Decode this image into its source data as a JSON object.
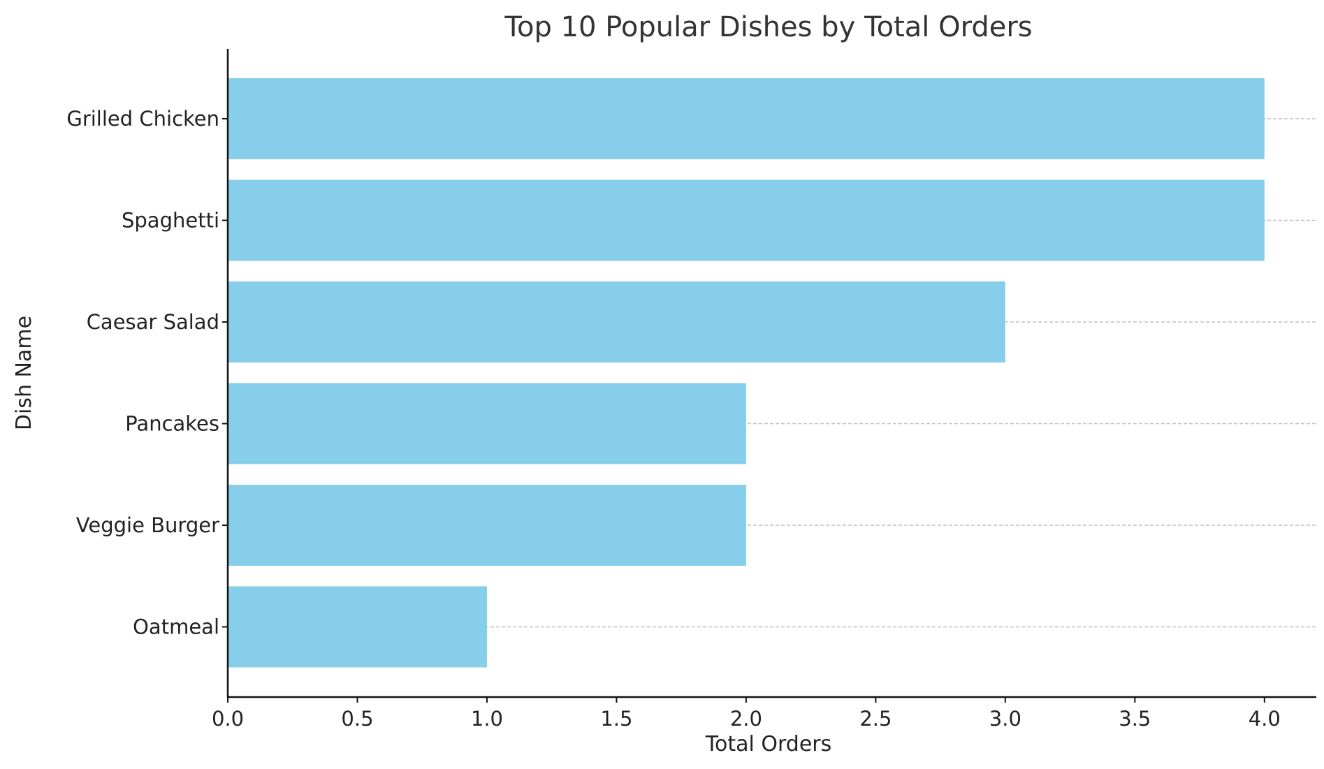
{
  "chart_data": {
    "type": "bar",
    "orientation": "horizontal",
    "title": "Top 10 Popular Dishes by Total Orders",
    "xlabel": "Total Orders",
    "ylabel": "Dish Name",
    "categories": [
      "Grilled Chicken",
      "Spaghetti",
      "Caesar Salad",
      "Pancakes",
      "Veggie Burger",
      "Oatmeal"
    ],
    "values": [
      4,
      4,
      3,
      2,
      2,
      1
    ],
    "xlim": [
      0,
      4.2
    ],
    "xticks": [
      0.0,
      0.5,
      1.0,
      1.5,
      2.0,
      2.5,
      3.0,
      3.5,
      4.0
    ],
    "xtick_labels": [
      "0.0",
      "0.5",
      "1.0",
      "1.5",
      "2.0",
      "2.5",
      "3.0",
      "3.5",
      "4.0"
    ],
    "grid": "y-dashed",
    "bar_color": "#87CEEB"
  }
}
